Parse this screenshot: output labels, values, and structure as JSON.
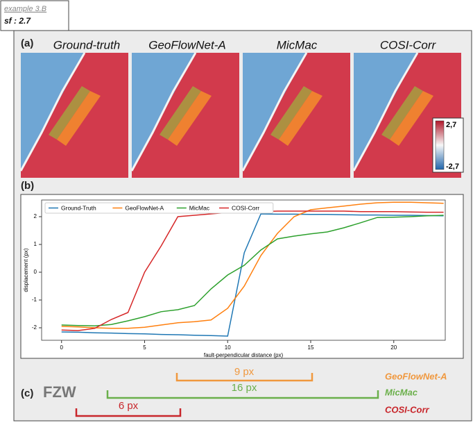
{
  "header": {
    "example": "example 3.B",
    "sf": "sf : 2.7"
  },
  "panel_a": {
    "label": "(a)",
    "titles": [
      "Ground-truth",
      "GeoFlowNet-A",
      "MicMac",
      "COSI-Corr"
    ],
    "colorbar": {
      "max": "2,7",
      "min": "-2,7"
    }
  },
  "panel_b": {
    "label": "(b)"
  },
  "chart_data": {
    "type": "line",
    "x_label": "fault-perpendicular distance (px)",
    "y_label": "displacement (px)",
    "x": [
      0,
      1,
      2,
      3,
      4,
      5,
      6,
      7,
      8,
      9,
      10,
      11,
      12,
      13,
      14,
      15,
      16,
      17,
      18,
      19,
      20,
      21,
      22,
      23
    ],
    "series": [
      {
        "name": "Ground-Truth",
        "color": "#1f77b4",
        "values": [
          -2.15,
          -2.16,
          -2.18,
          -2.19,
          -2.21,
          -2.22,
          -2.24,
          -2.25,
          -2.27,
          -2.28,
          -2.3,
          0.7,
          2.1,
          2.09,
          2.09,
          2.08,
          2.08,
          2.07,
          2.06,
          2.06,
          2.05,
          2.05,
          2.04,
          2.03
        ]
      },
      {
        "name": "GeoFlowNet-A",
        "color": "#ff7f0e",
        "values": [
          -1.95,
          -1.97,
          -2.0,
          -2.02,
          -2.02,
          -1.98,
          -1.9,
          -1.82,
          -1.78,
          -1.72,
          -1.3,
          -0.5,
          0.6,
          1.4,
          2.0,
          2.25,
          2.32,
          2.38,
          2.45,
          2.5,
          2.52,
          2.52,
          2.5,
          2.48
        ]
      },
      {
        "name": "MicMac",
        "color": "#2ca02c",
        "values": [
          -1.9,
          -1.92,
          -1.93,
          -1.88,
          -1.75,
          -1.6,
          -1.42,
          -1.35,
          -1.2,
          -0.6,
          -0.1,
          0.25,
          0.8,
          1.2,
          1.3,
          1.38,
          1.45,
          1.6,
          1.78,
          1.97,
          1.98,
          2.0,
          2.03,
          2.05
        ]
      },
      {
        "name": "COSI-Corr",
        "color": "#d62728",
        "values": [
          -2.08,
          -2.1,
          -2.02,
          -1.7,
          -1.45,
          0.0,
          0.95,
          2.0,
          2.05,
          2.1,
          2.15,
          2.15,
          2.18,
          2.2,
          2.2,
          2.2,
          2.2,
          2.2,
          2.18,
          2.18,
          2.18,
          2.17,
          2.16,
          2.16
        ]
      }
    ],
    "xlim": [
      -1.2,
      23.1
    ],
    "ylim": [
      -2.45,
      2.6
    ],
    "xticks": [
      0,
      5,
      10,
      15,
      20
    ],
    "yticks": [
      -2,
      -1,
      0,
      1,
      2
    ],
    "grid": false,
    "legend": "upper left"
  },
  "panel_c": {
    "label": "(c)",
    "fzw": "FZW",
    "widths": [
      {
        "value": "9 px",
        "method": "GeoFlowNet-A"
      },
      {
        "value": "16 px",
        "method": "MicMac"
      },
      {
        "value": "6 px",
        "method": "COSI-Corr"
      }
    ]
  }
}
